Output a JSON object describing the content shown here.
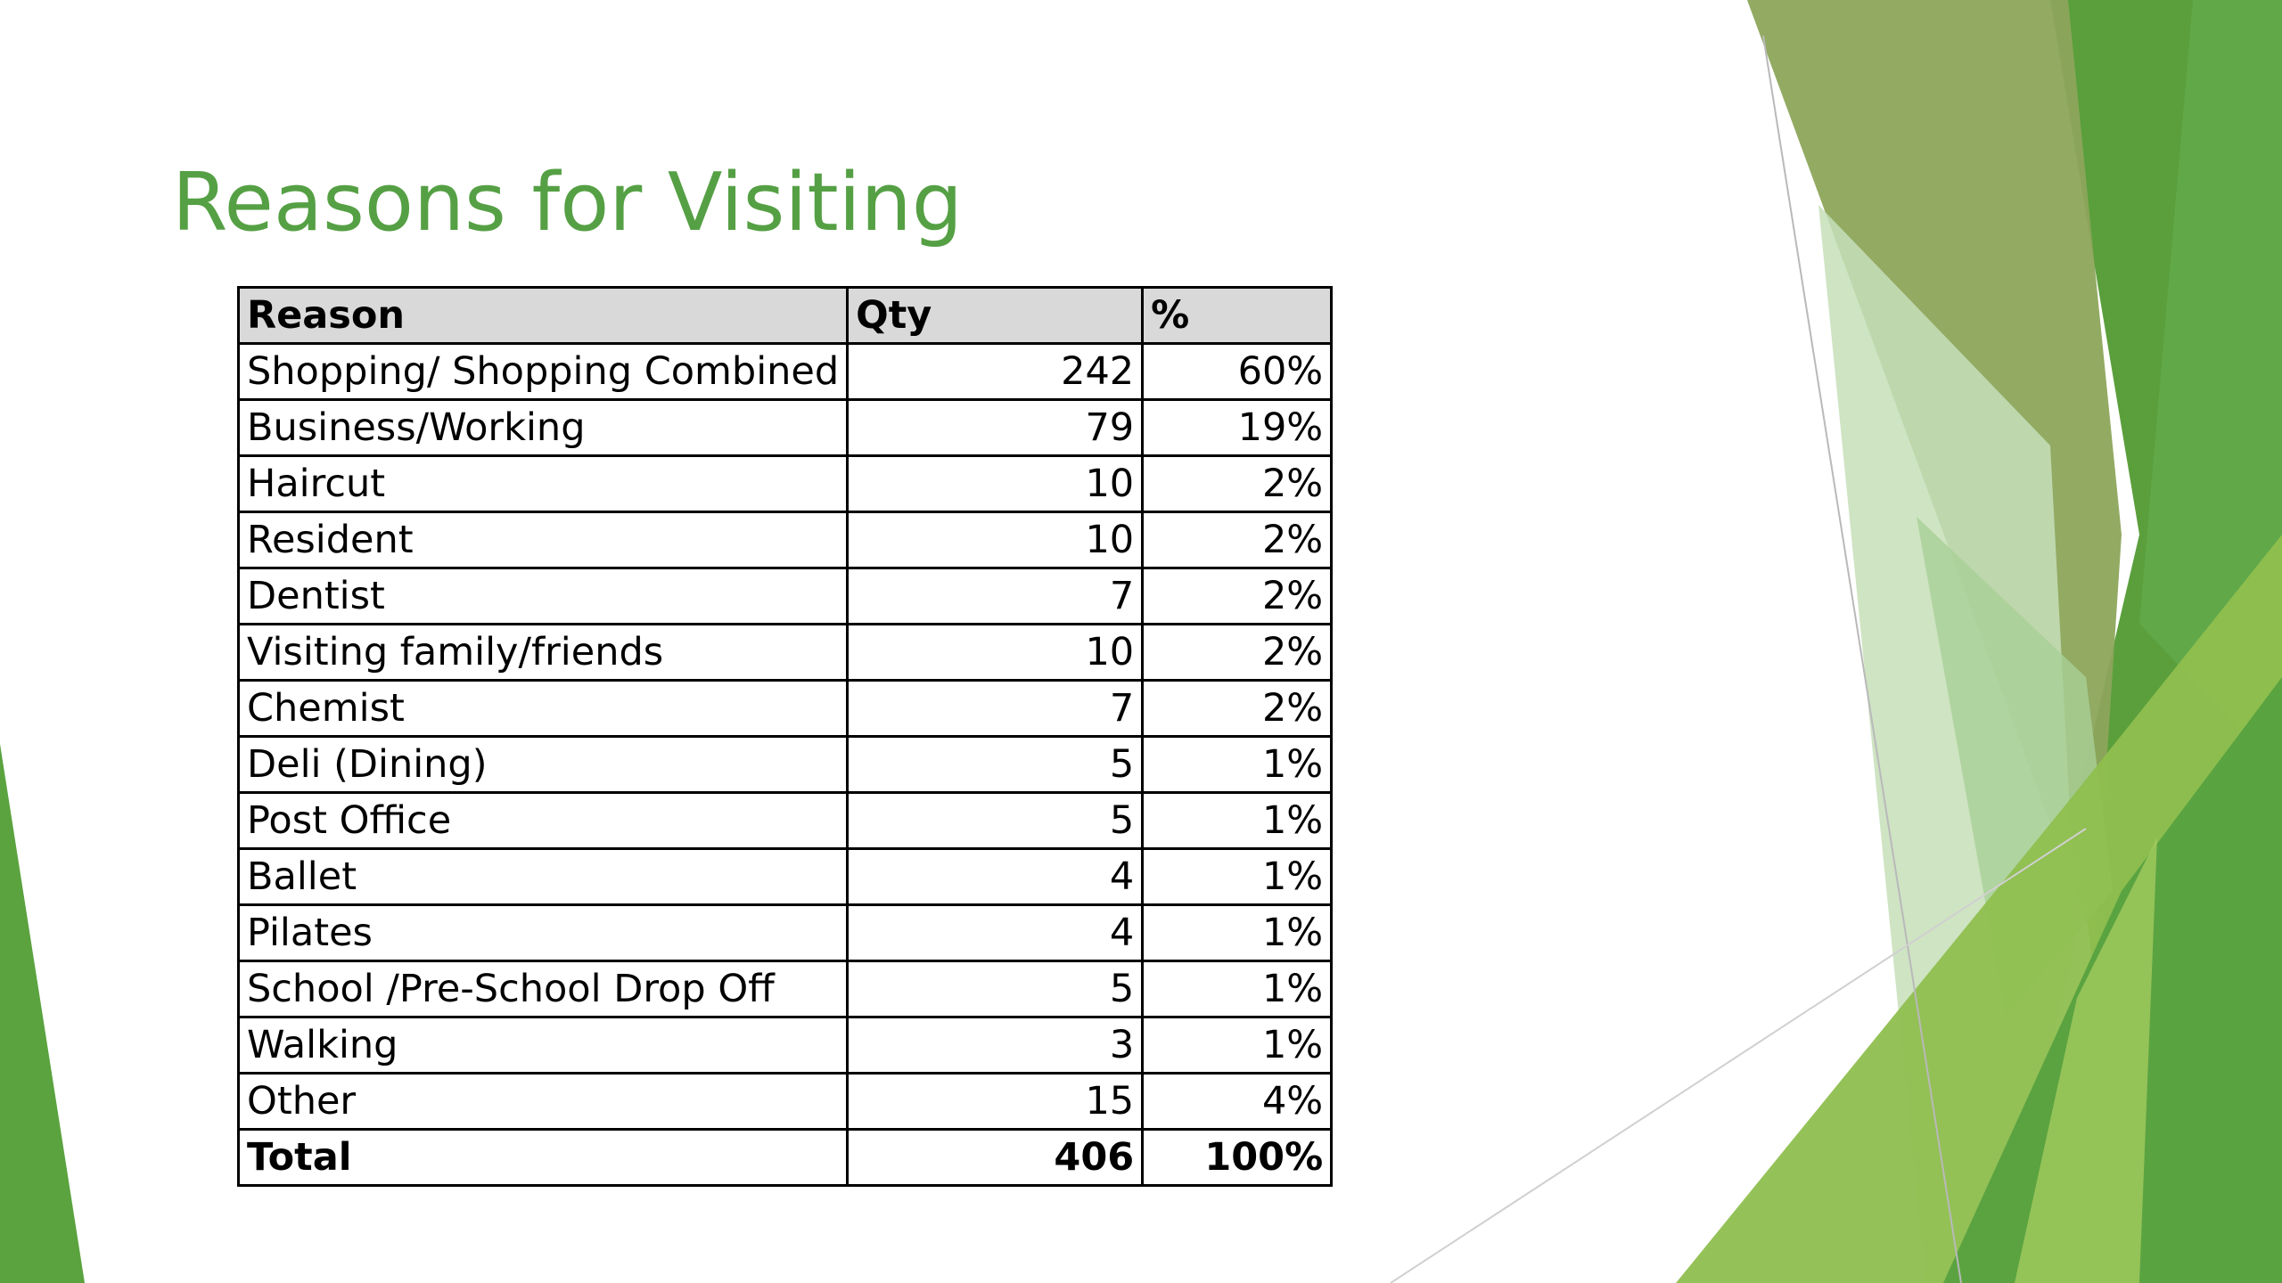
{
  "slide": {
    "title": "Reasons for Visiting"
  },
  "table": {
    "headers": {
      "reason": "Reason",
      "qty": "Qty",
      "pct": "%"
    },
    "rows": [
      {
        "reason": "Shopping/ Shopping Combined",
        "qty": "242",
        "pct": "60%"
      },
      {
        "reason": "Business/Working",
        "qty": "79",
        "pct": "19%"
      },
      {
        "reason": "Haircut",
        "qty": "10",
        "pct": "2%"
      },
      {
        "reason": "Resident",
        "qty": "10",
        "pct": "2%"
      },
      {
        "reason": "Dentist",
        "qty": "7",
        "pct": "2%"
      },
      {
        "reason": "Visiting family/friends",
        "qty": "10",
        "pct": "2%"
      },
      {
        "reason": "Chemist",
        "qty": "7",
        "pct": "2%"
      },
      {
        "reason": "Deli (Dining)",
        "qty": "5",
        "pct": "1%"
      },
      {
        "reason": "Post Office",
        "qty": "5",
        "pct": "1%"
      },
      {
        "reason": "Ballet",
        "qty": "4",
        "pct": "1%"
      },
      {
        "reason": "Pilates",
        "qty": "4",
        "pct": "1%"
      },
      {
        "reason": "School /Pre-School Drop Off",
        "qty": "5",
        "pct": "1%"
      },
      {
        "reason": "Walking",
        "qty": "3",
        "pct": "1%"
      },
      {
        "reason": "Other",
        "qty": "15",
        "pct": "4%"
      }
    ],
    "total": {
      "reason": "Total",
      "qty": "406",
      "pct": "100%"
    }
  },
  "theme": {
    "title_color": "#55a044",
    "header_fill": "#d9d9d9",
    "accent_greens": [
      "#4e9a3a",
      "#6aaf47",
      "#8fbe4c",
      "#8ca35a",
      "#c9e0bd"
    ]
  }
}
